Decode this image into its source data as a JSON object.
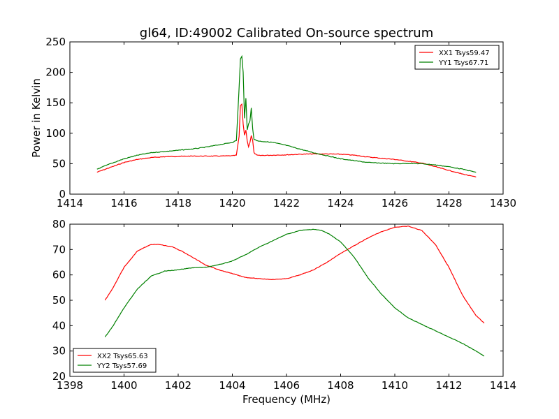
{
  "chart_data": [
    {
      "type": "line",
      "title": "gl64, ID:49002 Calibrated On-source spectrum",
      "xlabel": "",
      "ylabel": "Power in Kelvin",
      "xlim": [
        1414,
        1430
      ],
      "ylim": [
        0,
        250
      ],
      "xticks": [
        "1414",
        "1416",
        "1418",
        "1420",
        "1422",
        "1424",
        "1426",
        "1428",
        "1430"
      ],
      "yticks": [
        "0",
        "50",
        "100",
        "150",
        "200",
        "250"
      ],
      "legend_position": "top-right",
      "series": [
        {
          "name": "XX1 Tsys59.47",
          "color": "#ff0000",
          "x": [
            1415.0,
            1415.5,
            1416.0,
            1416.5,
            1417.0,
            1417.5,
            1418.0,
            1418.5,
            1419.0,
            1419.5,
            1420.0,
            1420.15,
            1420.25,
            1420.3,
            1420.35,
            1420.4,
            1420.45,
            1420.5,
            1420.55,
            1420.6,
            1420.65,
            1420.7,
            1420.75,
            1420.8,
            1420.9,
            1421.0,
            1421.5,
            1422.0,
            1422.5,
            1423.0,
            1423.5,
            1424.0,
            1424.5,
            1425.0,
            1425.5,
            1426.0,
            1426.5,
            1427.0,
            1427.5,
            1428.0,
            1428.5,
            1429.0
          ],
          "y": [
            36,
            44,
            52,
            57,
            60,
            61.5,
            62,
            62.5,
            62.5,
            62.5,
            63,
            64,
            95,
            145,
            148,
            115,
            97,
            105,
            88,
            78,
            85,
            96,
            88,
            68,
            64,
            63.5,
            64,
            64.5,
            65.5,
            66,
            66,
            65.5,
            64,
            61,
            59,
            57,
            54,
            51,
            45,
            39,
            33,
            28
          ]
        },
        {
          "name": "YY1 Tsys67.71",
          "color": "#008000",
          "x": [
            1415.0,
            1415.5,
            1416.0,
            1416.5,
            1417.0,
            1417.5,
            1418.0,
            1418.5,
            1419.0,
            1419.5,
            1420.0,
            1420.15,
            1420.25,
            1420.3,
            1420.35,
            1420.4,
            1420.45,
            1420.5,
            1420.55,
            1420.6,
            1420.65,
            1420.7,
            1420.75,
            1420.8,
            1420.9,
            1421.0,
            1421.5,
            1422.0,
            1422.5,
            1423.0,
            1423.5,
            1424.0,
            1424.5,
            1425.0,
            1425.5,
            1426.0,
            1426.5,
            1427.0,
            1427.5,
            1428.0,
            1428.5,
            1429.0
          ],
          "y": [
            41,
            50,
            58,
            64,
            68,
            70,
            72,
            74,
            77,
            81,
            85,
            88,
            175,
            222,
            226,
            200,
            125,
            158,
            105,
            115,
            120,
            142,
            108,
            90,
            88,
            87,
            85,
            80,
            74,
            68,
            63,
            58,
            55,
            52,
            51,
            50,
            50.5,
            50,
            48,
            45,
            41,
            36
          ]
        }
      ]
    },
    {
      "type": "line",
      "title": "",
      "xlabel": "Frequency (MHz)",
      "ylabel": "",
      "xlim": [
        1398,
        1414
      ],
      "ylim": [
        20,
        80
      ],
      "xticks": [
        "1398",
        "1400",
        "1402",
        "1404",
        "1406",
        "1408",
        "1410",
        "1412",
        "1414"
      ],
      "yticks": [
        "20",
        "30",
        "40",
        "50",
        "60",
        "70",
        "80"
      ],
      "legend_position": "bottom-left",
      "series": [
        {
          "name": "XX2 Tsys65.63",
          "color": "#ff0000",
          "x": [
            1399.3,
            1399.6,
            1400.0,
            1400.5,
            1401.0,
            1401.3,
            1401.8,
            1402.2,
            1402.6,
            1403.0,
            1403.5,
            1404.0,
            1404.5,
            1405.0,
            1405.5,
            1406.0,
            1406.5,
            1407.0,
            1407.5,
            1408.0,
            1408.5,
            1409.0,
            1409.5,
            1410.0,
            1410.5,
            1411.0,
            1411.5,
            1412.0,
            1412.5,
            1413.0,
            1413.3
          ],
          "y": [
            50,
            55,
            63,
            69.5,
            72,
            72,
            71,
            69,
            66.5,
            64,
            62,
            60.5,
            59,
            58.5,
            58.2,
            58.5,
            60,
            62,
            65,
            68.5,
            71.5,
            74.5,
            77,
            78.8,
            79.2,
            77.5,
            72,
            63,
            52,
            44,
            41
          ]
        },
        {
          "name": "YY2 Tsys57.69",
          "color": "#008000",
          "x": [
            1399.3,
            1399.6,
            1400.0,
            1400.5,
            1401.0,
            1401.5,
            1402.0,
            1402.5,
            1403.0,
            1403.5,
            1404.0,
            1404.5,
            1405.0,
            1405.5,
            1406.0,
            1406.5,
            1407.0,
            1407.3,
            1407.6,
            1408.0,
            1408.5,
            1409.0,
            1409.5,
            1410.0,
            1410.5,
            1411.0,
            1411.5,
            1412.0,
            1412.5,
            1413.0,
            1413.3
          ],
          "y": [
            35.5,
            40,
            47,
            54.5,
            59.5,
            61.5,
            62,
            62.8,
            63,
            64,
            65.5,
            68,
            71,
            73.5,
            76,
            77.5,
            78,
            77.5,
            76,
            73,
            67,
            59,
            52.5,
            47,
            43,
            40.5,
            38,
            35.5,
            33,
            30,
            28
          ]
        }
      ]
    }
  ]
}
